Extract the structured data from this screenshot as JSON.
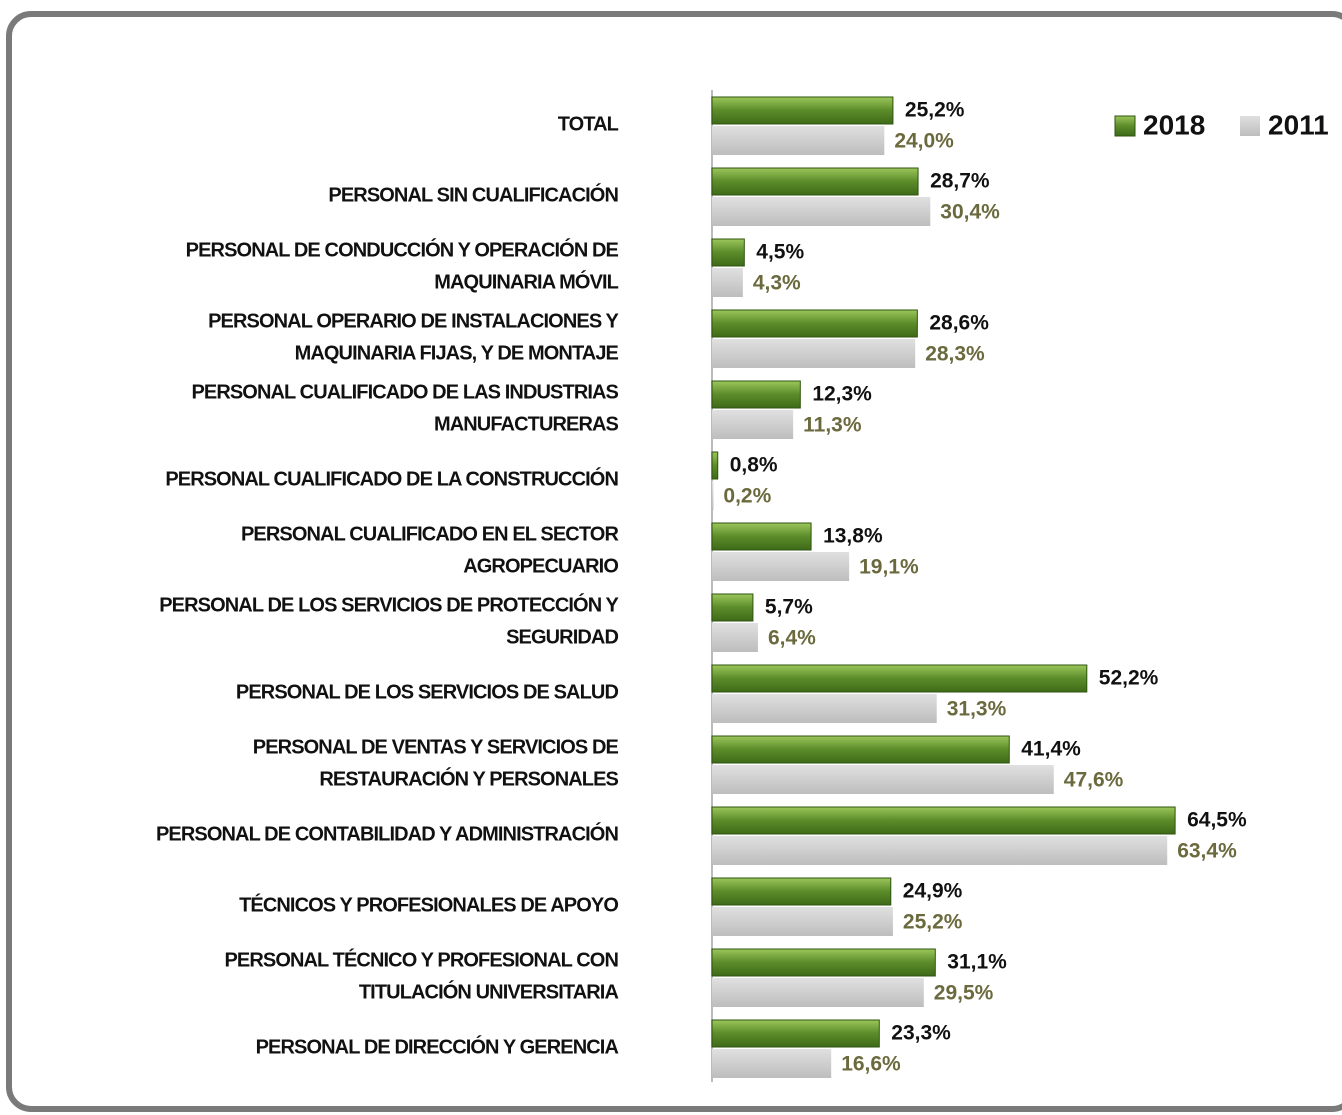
{
  "chart_data": {
    "type": "bar",
    "orientation": "horizontal",
    "categories": [
      [
        "TOTAL"
      ],
      [
        "PERSONAL SIN CUALIFICACIÓN"
      ],
      [
        "PERSONAL DE CONDUCCIÓN Y OPERACIÓN DE",
        "MAQUINARIA MÓVIL"
      ],
      [
        "PERSONAL OPERARIO DE INSTALACIONES Y",
        "MAQUINARIA FIJAS, Y DE MONTAJE"
      ],
      [
        "PERSONAL CUALIFICADO DE LAS INDUSTRIAS",
        "MANUFACTURERAS"
      ],
      [
        "PERSONAL CUALIFICADO DE LA CONSTRUCCIÓN"
      ],
      [
        "PERSONAL CUALIFICADO EN EL SECTOR",
        "AGROPECUARIO"
      ],
      [
        "PERSONAL DE LOS SERVICIOS DE PROTECCIÓN Y",
        "SEGURIDAD"
      ],
      [
        "PERSONAL DE LOS SERVICIOS DE SALUD"
      ],
      [
        "PERSONAL DE VENTAS Y SERVICIOS DE",
        "RESTAURACIÓN Y PERSONALES"
      ],
      [
        "PERSONAL DE CONTABILIDAD Y ADMINISTRACIÓN"
      ],
      [
        "TÉCNICOS Y PROFESIONALES DE APOYO"
      ],
      [
        "PERSONAL TÉCNICO Y PROFESIONAL CON",
        "TITULACIÓN UNIVERSITARIA"
      ],
      [
        "PERSONAL DE DIRECCIÓN Y GERENCIA"
      ]
    ],
    "series": [
      {
        "name": "2018",
        "color": "#5b8c2a",
        "values": [
          25.2,
          28.7,
          4.5,
          28.6,
          12.3,
          0.8,
          13.8,
          5.7,
          52.2,
          41.4,
          64.5,
          24.9,
          31.1,
          23.3
        ],
        "value_labels": [
          "25,2%",
          "28,7%",
          "4,5%",
          "28,6%",
          "12,3%",
          "0,8%",
          "13,8%",
          "5,7%",
          "52,2%",
          "41,4%",
          "64,5%",
          "24,9%",
          "31,1%",
          "23,3%"
        ]
      },
      {
        "name": "2011",
        "color": "#c9c9c9",
        "values": [
          24.0,
          30.4,
          4.3,
          28.3,
          11.3,
          0.2,
          19.1,
          6.4,
          31.3,
          47.6,
          63.4,
          25.2,
          29.5,
          16.6
        ],
        "value_labels": [
          "24,0%",
          "30,4%",
          "4,3%",
          "28,3%",
          "11,3%",
          "0,2%",
          "19,1%",
          "6,4%",
          "31,3%",
          "47,6%",
          "63,4%",
          "25,2%",
          "29,5%",
          "16,6%"
        ]
      }
    ],
    "legend": "top-right"
  }
}
